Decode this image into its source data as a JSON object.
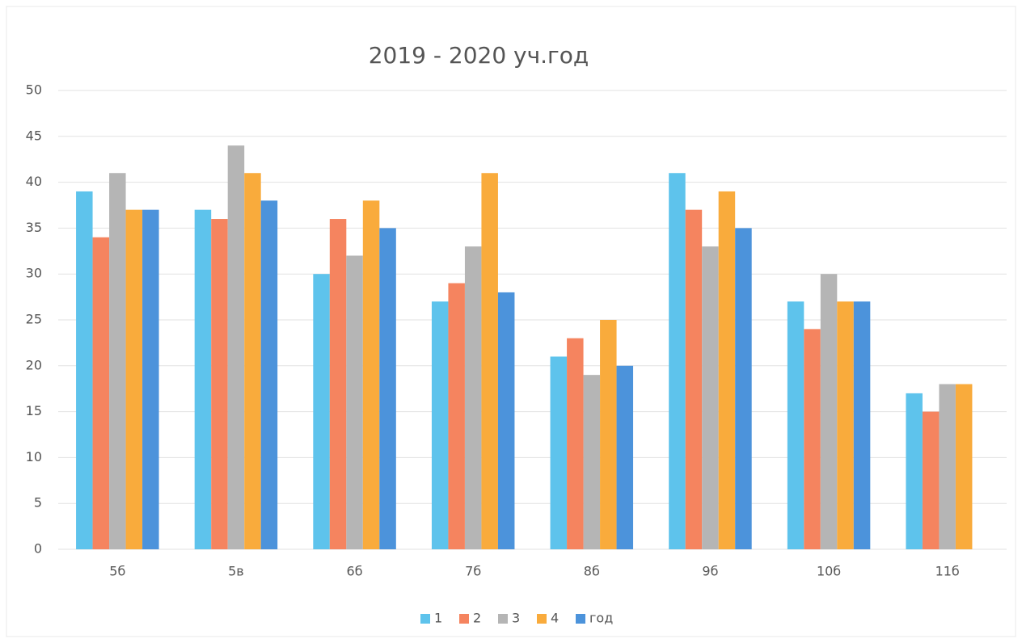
{
  "chart_data": {
    "type": "bar",
    "title": "2019 - 2020 уч.год",
    "categories": [
      "5б",
      "5в",
      "6б",
      "7б",
      "8б",
      "9б",
      "10б",
      "11б"
    ],
    "series": [
      {
        "name": "1",
        "color": "#5ec3ec",
        "values": [
          39,
          37,
          30,
          27,
          21,
          41,
          27,
          17
        ]
      },
      {
        "name": "2",
        "color": "#f5845f",
        "values": [
          34,
          36,
          36,
          29,
          23,
          37,
          24,
          15
        ]
      },
      {
        "name": "3",
        "color": "#b5b5b5",
        "values": [
          41,
          44,
          32,
          33,
          19,
          33,
          30,
          18
        ]
      },
      {
        "name": "4",
        "color": "#f9ab3c",
        "values": [
          37,
          41,
          38,
          41,
          25,
          39,
          27,
          18
        ]
      },
      {
        "name": "год",
        "color": "#4c93db",
        "values": [
          37,
          38,
          35,
          28,
          20,
          35,
          27,
          null
        ]
      }
    ],
    "ylim": [
      0,
      50
    ],
    "yticks": [
      0,
      5,
      10,
      15,
      20,
      25,
      30,
      35,
      40,
      45,
      50
    ],
    "grid": true,
    "legend": "bottom"
  }
}
